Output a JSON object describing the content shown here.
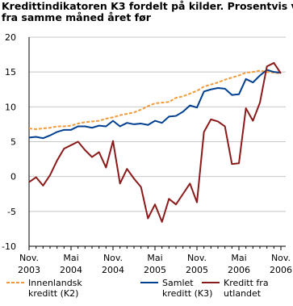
{
  "chart_data": {
    "type": "line",
    "title": "Kredittindikatoren K3 fordelt på kilder. Prosentvis vekst\nfra samme måned året før",
    "categories": [
      "Nov.\n2003",
      null,
      null,
      null,
      null,
      null,
      "Mai\n2004",
      null,
      null,
      null,
      null,
      null,
      "Nov.\n2004",
      null,
      null,
      null,
      null,
      null,
      "Mai\n2005",
      null,
      null,
      null,
      null,
      null,
      "Nov.\n2005",
      null,
      null,
      null,
      null,
      null,
      "Mai\n2006",
      null,
      null,
      null,
      null,
      null,
      "Nov.\n2006"
    ],
    "series": [
      {
        "name": "Innenlandsk\nkreditt (K2)",
        "color": "#f39a3a",
        "dash": true,
        "values": [
          6.9,
          6.8,
          6.9,
          7.0,
          7.2,
          7.2,
          7.3,
          7.6,
          7.8,
          7.9,
          8.0,
          8.3,
          8.5,
          8.8,
          9.0,
          9.2,
          9.6,
          10.1,
          10.5,
          10.6,
          10.7,
          11.3,
          11.5,
          11.9,
          12.3,
          12.9,
          13.2,
          13.5,
          13.9,
          14.2,
          14.5,
          14.9,
          15.0,
          15.2,
          15.0,
          14.9,
          14.8
        ]
      },
      {
        "name": "Samlet\nkreditt (K3)",
        "color": "#003f8f",
        "dash": false,
        "values": [
          5.6,
          5.7,
          5.5,
          5.9,
          6.4,
          6.7,
          6.7,
          7.2,
          7.2,
          7.0,
          7.3,
          7.2,
          8.0,
          7.2,
          7.7,
          7.5,
          7.6,
          7.4,
          8.0,
          7.7,
          8.6,
          8.7,
          9.3,
          10.2,
          9.9,
          12.2,
          12.5,
          12.7,
          12.6,
          11.7,
          11.8,
          14.0,
          13.5,
          14.5,
          15.3,
          15.0,
          14.9
        ]
      },
      {
        "name": "Kreditt fra\nutlandet",
        "color": "#8b1a1a",
        "dash": false,
        "values": [
          -0.8,
          -0.1,
          -1.3,
          0.2,
          2.3,
          4.0,
          4.5,
          5.0,
          3.8,
          2.8,
          3.5,
          1.3,
          5.1,
          -1.0,
          1.1,
          -0.3,
          -1.5,
          -6.0,
          -4.0,
          -6.5,
          -3.2,
          -4.0,
          -2.5,
          -1.0,
          -3.7,
          6.4,
          8.2,
          7.9,
          7.2,
          1.8,
          1.9,
          9.8,
          8.0,
          10.6,
          15.8,
          16.3,
          14.8
        ]
      }
    ],
    "ylim": [
      -10,
      20
    ],
    "yticks": [
      -10,
      -5,
      0,
      5,
      10,
      15,
      20
    ],
    "grid": true
  }
}
